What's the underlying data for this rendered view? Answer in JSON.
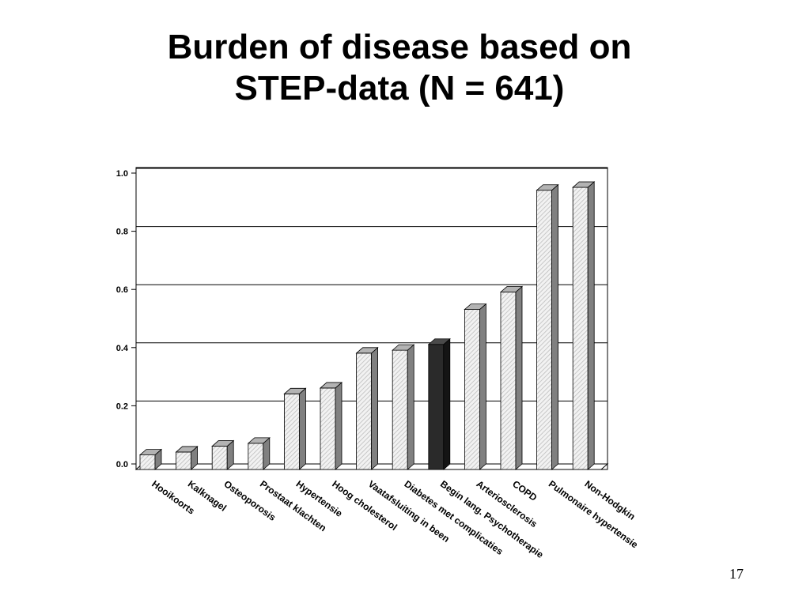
{
  "slide": {
    "title_line1": "Burden of disease based on",
    "title_line2": "STEP-data (N = 641)",
    "page_number": "17"
  },
  "chart_data": {
    "type": "bar",
    "categories": [
      "Hooikoorts",
      "Kalknagel",
      "Osteoporosis",
      "Prostaat klachten",
      "Hypertensie",
      "Hoog cholesterol",
      "Vaatafsluiting in been",
      "Diabetes met complicaties",
      "Begin lang. Psychotherapie",
      "Arteriosclerosis",
      "COPD",
      "Pulmonaire hypertensie",
      "Non-Hodgkin"
    ],
    "values": [
      0.05,
      0.06,
      0.08,
      0.09,
      0.26,
      0.28,
      0.4,
      0.41,
      0.43,
      0.55,
      0.61,
      0.96,
      0.97
    ],
    "highlight_index": 8,
    "ylim": [
      0.0,
      1.0
    ],
    "yticks": [
      "0.0",
      "0.2",
      "0.4",
      "0.6",
      "0.8",
      "1.0"
    ],
    "grid": true,
    "style": "3d-column",
    "colors": {
      "bar_front": "#f2f2f2",
      "bar_hatch": "#bdbdbd",
      "bar_side": "#808080",
      "bar_top": "#b3b3b3",
      "highlight_front": "#2a2a2a",
      "highlight_side": "#141414",
      "highlight_top": "#4a4a4a",
      "axis": "#000000"
    }
  }
}
